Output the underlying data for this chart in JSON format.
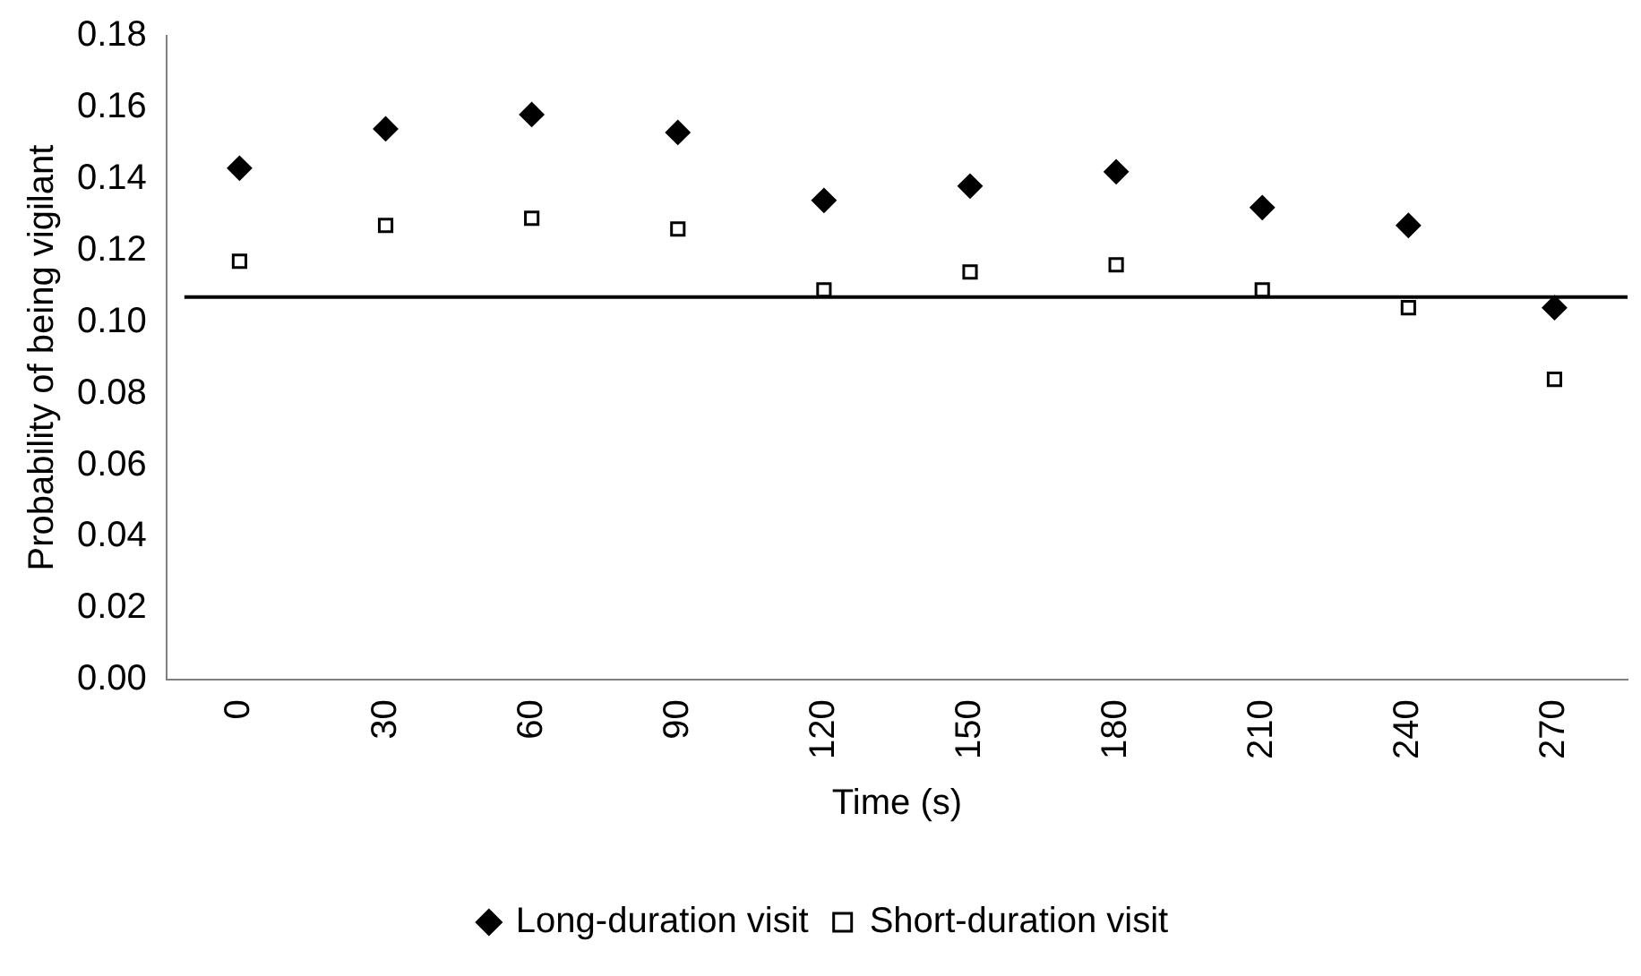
{
  "chart_data": {
    "type": "scatter",
    "xlabel": "Time (s)",
    "ylabel": "Probability of being vigilant",
    "categories": [
      "0",
      "30",
      "60",
      "90",
      "120",
      "150",
      "180",
      "210",
      "240",
      "270"
    ],
    "series": [
      {
        "name": "Long-duration visit",
        "color": "#000000",
        "marker": "diamond",
        "values": [
          0.143,
          0.154,
          0.158,
          0.153,
          0.134,
          0.138,
          0.142,
          0.132,
          0.127,
          0.104
        ]
      },
      {
        "name": "Short-duration visit",
        "color": "#000000",
        "marker": "square",
        "values": [
          0.117,
          0.127,
          0.129,
          0.126,
          0.109,
          0.114,
          0.116,
          0.109,
          0.104,
          0.084
        ]
      }
    ],
    "ylim": [
      0,
      0.18
    ],
    "yticks": [
      {
        "value": 0,
        "label": "0.00"
      },
      {
        "value": 0.02,
        "label": "0.02"
      },
      {
        "value": 0.04,
        "label": "0.04"
      },
      {
        "value": 0.06,
        "label": "0.06"
      },
      {
        "value": 0.08,
        "label": "0.08"
      },
      {
        "value": 0.1,
        "label": "0.10"
      },
      {
        "value": 0.12,
        "label": "0.12"
      },
      {
        "value": 0.14,
        "label": "0.14"
      },
      {
        "value": 0.16,
        "label": "0.16"
      },
      {
        "value": 0.18,
        "label": "0.18"
      }
    ],
    "ref_lines": [
      {
        "axis": "y",
        "value": 0.107,
        "color": "#000000"
      }
    ],
    "grid": false,
    "legend": "bottom"
  }
}
